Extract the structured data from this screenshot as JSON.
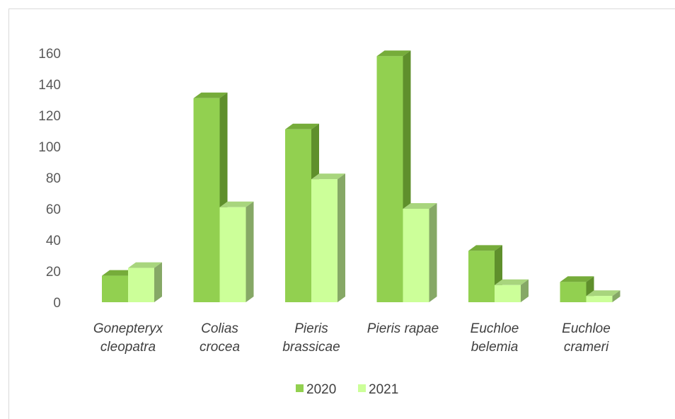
{
  "chart_data": {
    "type": "bar",
    "style": "3d-clustered-column",
    "categories": [
      [
        "Gonepteryx",
        "cleopatra"
      ],
      [
        "Colias",
        "crocea"
      ],
      [
        "Pieris",
        "brassicae"
      ],
      [
        "Pieris rapae"
      ],
      [
        "Euchloe",
        "belemia"
      ],
      [
        "Euchloe",
        "crameri"
      ]
    ],
    "series": [
      {
        "name": "2020",
        "values": [
          17,
          131,
          111,
          158,
          33,
          13
        ],
        "color": "#92d050",
        "side_color": "#5f8f2c",
        "top_color": "#76ac3a"
      },
      {
        "name": "2021",
        "values": [
          22,
          61,
          79,
          60,
          11,
          4
        ],
        "color": "#ccff99",
        "side_color": "#86a866",
        "top_color": "#a8d57d"
      }
    ],
    "yticks": [
      0,
      20,
      40,
      60,
      80,
      100,
      120,
      140,
      160
    ],
    "ylim": [
      0,
      160
    ],
    "grid": false,
    "legend": "bottom"
  }
}
